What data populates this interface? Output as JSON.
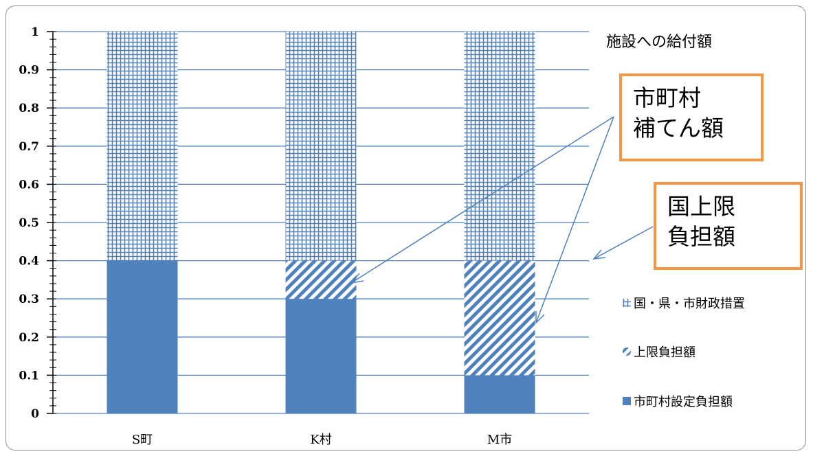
{
  "chart_data": {
    "type": "bar",
    "stacked": true,
    "categories": [
      "S町",
      "K村",
      "M市"
    ],
    "series": [
      {
        "name": "市町村設定負担額",
        "values": [
          0.4,
          0.3,
          0.1
        ],
        "color": "#4f81bd",
        "pattern": "solid"
      },
      {
        "name": "上限負担額",
        "values": [
          0.0,
          0.1,
          0.3
        ],
        "color": "#4f81bd",
        "pattern": "diagonal-stripes"
      },
      {
        "name": "国・県・市財政措置",
        "values": [
          0.6,
          0.6,
          0.6
        ],
        "color": "#4f81bd",
        "pattern": "grid"
      }
    ],
    "title": "施設への給付額",
    "ylim": [
      0,
      1
    ],
    "yticks": [
      "0",
      "0.1",
      "0.2",
      "0.3",
      "0.4",
      "0.5",
      "0.6",
      "0.7",
      "0.8",
      "0.9",
      "1"
    ],
    "grid": true,
    "legend_position": "right"
  },
  "annotations": {
    "callout1": {
      "line1": "市町村",
      "line2": "補てん額"
    },
    "callout2": {
      "line1": "国上限",
      "line2": "負担額"
    }
  },
  "colors": {
    "bar": "#4f81bd",
    "callout_border": "#f79646",
    "gridline": "#4f81bd"
  }
}
